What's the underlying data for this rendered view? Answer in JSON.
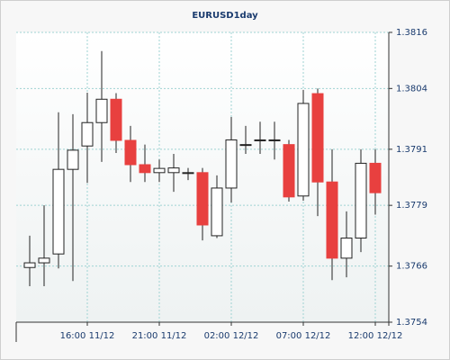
{
  "chart_data": {
    "type": "candlestick",
    "title": "EURUSD1day",
    "categories": [
      null,
      null,
      null,
      null,
      "16:00 11/12",
      null,
      null,
      null,
      null,
      "21:00 11/12",
      null,
      null,
      null,
      null,
      "02:00 12/12",
      null,
      null,
      null,
      null,
      "07:00 12/12",
      null,
      null,
      null,
      null,
      "12:00 12/12"
    ],
    "open": [
      1.37657,
      1.37667,
      1.37686,
      1.37867,
      1.37917,
      1.37967,
      1.38017,
      1.37929,
      1.37877,
      1.3786,
      1.3786,
      1.3786,
      1.3786,
      1.37725,
      1.37827,
      1.3792,
      1.3793,
      1.3793,
      1.3792,
      1.3781,
      1.38029,
      1.3784,
      1.37677,
      1.3772,
      1.3788
    ],
    "high": [
      1.37725,
      1.3779,
      1.37989,
      1.37985,
      1.38031,
      1.3812,
      1.3803,
      1.3796,
      1.3792,
      1.37888,
      1.379,
      1.3787,
      1.3787,
      1.37854,
      1.37979,
      1.3796,
      1.37969,
      1.37969,
      1.3793,
      1.38037,
      1.3804,
      1.3791,
      1.37777,
      1.3791,
      1.3791
    ],
    "low": [
      1.37617,
      1.37617,
      1.37655,
      1.37628,
      1.37838,
      1.37883,
      1.37902,
      1.3784,
      1.3784,
      1.3784,
      1.37819,
      1.37844,
      1.37715,
      1.3772,
      1.37796,
      1.379,
      1.379,
      1.37888,
      1.37798,
      1.378,
      1.37767,
      1.3763,
      1.37636,
      1.3769,
      1.3777
    ],
    "close": [
      1.37667,
      1.37677,
      1.37867,
      1.37908,
      1.37967,
      1.38017,
      1.37929,
      1.37877,
      1.3786,
      1.37869,
      1.3787,
      1.3786,
      1.37748,
      1.37827,
      1.3793,
      1.3792,
      1.3793,
      1.3793,
      1.37808,
      1.38008,
      1.3784,
      1.37677,
      1.3772,
      1.3788,
      1.37817
    ],
    "up_color": "#ffffff",
    "down_color": "#e8403f",
    "ylim": [
      1.3754,
      1.3816
    ],
    "yticks": [
      1.3754,
      1.3766,
      1.3779,
      1.3791,
      1.3804,
      1.3816
    ],
    "grid": true
  }
}
